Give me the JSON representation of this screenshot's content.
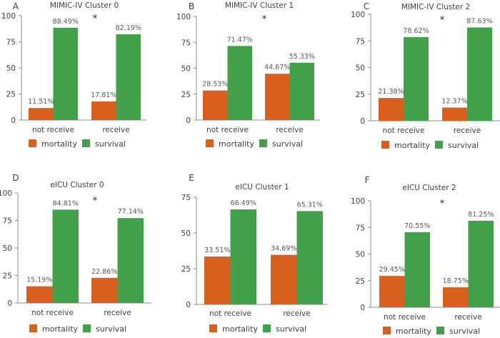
{
  "colors": {
    "mortality": "#d95f1f",
    "survival": "#43a04a",
    "axis": "#8c8c8c"
  },
  "chart_data": [
    {
      "type": "bar",
      "panel": "A",
      "title": "MIMIC-IV  Cluster 0",
      "categories": [
        "not receive",
        "receive"
      ],
      "series": [
        {
          "name": "mortality",
          "values": [
            11.51,
            17.81
          ],
          "labels": [
            "11.51%",
            "17.81%"
          ]
        },
        {
          "name": "survival",
          "values": [
            88.49,
            82.19
          ],
          "labels": [
            "88.49%",
            "82.19%"
          ]
        }
      ],
      "ylim": [
        0,
        100
      ],
      "yticks": [
        "0",
        "25",
        "50",
        "75",
        "100"
      ],
      "yticks_values": [
        0,
        25,
        50,
        75,
        100
      ],
      "annotation": "*",
      "legend": "bottom",
      "grid": false
    },
    {
      "type": "bar",
      "panel": "B",
      "title": "MIMIC-IV  Cluster 1",
      "categories": [
        "not receive",
        "receive"
      ],
      "series": [
        {
          "name": "mortality",
          "values": [
            28.53,
            44.67
          ],
          "labels": [
            "28.53%",
            "44.67%"
          ]
        },
        {
          "name": "survival",
          "values": [
            71.47,
            55.33
          ],
          "labels": [
            "71.47%",
            "55.33%"
          ]
        }
      ],
      "ylim": [
        0,
        100
      ],
      "yticks": [
        "0",
        "25",
        "50",
        "75",
        "100"
      ],
      "yticks_values": [
        0,
        25,
        50,
        75,
        100
      ],
      "annotation": "*",
      "legend": "bottom",
      "grid": false
    },
    {
      "type": "bar",
      "panel": "C",
      "title": "MIMIC-IV  Cluster 2",
      "categories": [
        "not receive",
        "receive"
      ],
      "series": [
        {
          "name": "mortality",
          "values": [
            21.38,
            12.37
          ],
          "labels": [
            "21.38%",
            "12.37%"
          ]
        },
        {
          "name": "survival",
          "values": [
            78.62,
            87.63
          ],
          "labels": [
            "78.62%",
            "87.63%"
          ]
        }
      ],
      "ylim": [
        0,
        100
      ],
      "yticks": [
        "0",
        "25",
        "50",
        "75",
        "100"
      ],
      "yticks_values": [
        0,
        25,
        50,
        75,
        100
      ],
      "annotation": "*",
      "legend": "bottom",
      "grid": false
    },
    {
      "type": "bar",
      "panel": "D",
      "title": "eICU Cluster 0",
      "categories": [
        "not receive",
        "receive"
      ],
      "series": [
        {
          "name": "mortality",
          "values": [
            15.19,
            22.86
          ],
          "labels": [
            "15.19%",
            "22.86%"
          ]
        },
        {
          "name": "survival",
          "values": [
            84.81,
            77.14
          ],
          "labels": [
            "84.81%",
            "77.14%"
          ]
        }
      ],
      "ylim": [
        0,
        100
      ],
      "yticks": [
        "0",
        "25",
        "50",
        "75",
        "100"
      ],
      "yticks_values": [
        0,
        25,
        50,
        75,
        100
      ],
      "annotation": "*",
      "legend": "bottom",
      "grid": false
    },
    {
      "type": "bar",
      "panel": "E",
      "title": "eICU Cluster 1",
      "categories": [
        "not receive",
        "receive"
      ],
      "series": [
        {
          "name": "mortality",
          "values": [
            33.51,
            34.69
          ],
          "labels": [
            "33.51%",
            "34.69%"
          ]
        },
        {
          "name": "survival",
          "values": [
            66.49,
            65.31
          ],
          "labels": [
            "66.49%",
            "65.31%"
          ]
        }
      ],
      "ylim": [
        0,
        75
      ],
      "yticks": [
        "0",
        "25",
        "50",
        "75"
      ],
      "yticks_values": [
        0,
        25,
        50,
        75
      ],
      "annotation": "",
      "legend": "bottom",
      "grid": false
    },
    {
      "type": "bar",
      "panel": "F",
      "title": "eICU Cluster 2",
      "categories": [
        "not receive",
        "receive"
      ],
      "series": [
        {
          "name": "mortality",
          "values": [
            29.45,
            18.75
          ],
          "labels": [
            "29.45%",
            "18.75%"
          ]
        },
        {
          "name": "survival",
          "values": [
            70.55,
            81.25
          ],
          "labels": [
            "70.55%",
            "81.25%"
          ]
        }
      ],
      "ylim": [
        0,
        100
      ],
      "yticks": [
        "0",
        "25",
        "50",
        "75",
        "100"
      ],
      "yticks_values": [
        0,
        25,
        50,
        75,
        100
      ],
      "annotation": "*",
      "legend": "bottom",
      "grid": false
    }
  ]
}
